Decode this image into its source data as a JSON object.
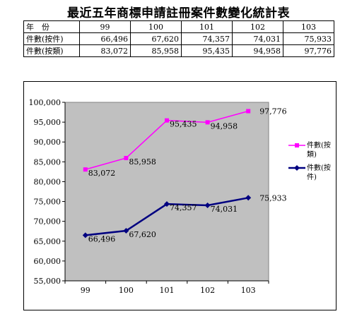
{
  "title": "最近五年商標申請註冊案件數變化統計表",
  "table": {
    "header_label": "年　份",
    "years": [
      "99",
      "100",
      "101",
      "102",
      "103"
    ],
    "rows": [
      {
        "label": "件數(按件)",
        "values": [
          "66,496",
          "67,620",
          "74,357",
          "74,031",
          "75,933"
        ]
      },
      {
        "label": "件數(按類)",
        "values": [
          "83,072",
          "85,958",
          "95,435",
          "94,958",
          "97,776"
        ]
      }
    ]
  },
  "chart_data": {
    "type": "line",
    "categories": [
      "99",
      "100",
      "101",
      "102",
      "103"
    ],
    "series": [
      {
        "name": "件數(按類)",
        "values": [
          83072,
          85958,
          95435,
          94958,
          97776
        ],
        "labels": [
          "83,072",
          "85,958",
          "95,435",
          "94,958",
          "97,776"
        ],
        "color": "#ff00ff",
        "marker": "square",
        "legend_lines": [
          "件數(按",
          "類)"
        ]
      },
      {
        "name": "件數(按件)",
        "values": [
          66496,
          67620,
          74357,
          74031,
          75933
        ],
        "labels": [
          "66,496",
          "67,620",
          "74,357",
          "74,031",
          "75,933"
        ],
        "color": "#000080",
        "marker": "diamond",
        "legend_lines": [
          "件數(按",
          "件)"
        ]
      }
    ],
    "ylim": [
      55000,
      100000
    ],
    "yticks": [
      55000,
      60000,
      65000,
      70000,
      75000,
      80000,
      85000,
      90000,
      95000,
      100000
    ],
    "ytick_labels": [
      "55,000",
      "60,000",
      "65,000",
      "70,000",
      "75,000",
      "80,000",
      "85,000",
      "90,000",
      "95,000",
      "100,000"
    ],
    "plot_background": "#c0c0c0",
    "grid": false,
    "legend_position": "right",
    "title": "",
    "xlabel": "",
    "ylabel": ""
  }
}
